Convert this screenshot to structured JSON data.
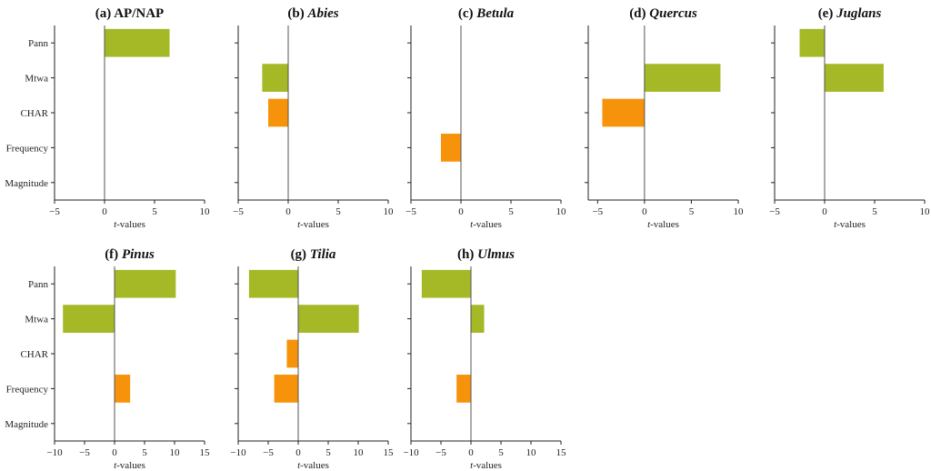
{
  "figure": {
    "categories": [
      "Pann",
      "Mtwa",
      "CHAR",
      "Frequency",
      "Magnitude"
    ],
    "colors": {
      "climate": "#a5b826",
      "fire": "#f7930a",
      "axis": "#222222",
      "zero_line": "#555555"
    },
    "x_axis_label_italic": "t",
    "x_axis_label_rest": "-values"
  },
  "chart_data": [
    {
      "type": "bar",
      "orientation": "horizontal",
      "panel": "(a)",
      "title_prefix": "(a)",
      "title_taxon": "AP/NAP",
      "title_italic": false,
      "categories": [
        "Pann",
        "Mtwa",
        "CHAR",
        "Frequency",
        "Magnitude"
      ],
      "values": [
        6.5,
        null,
        null,
        null,
        null
      ],
      "xlabel": "t-values",
      "xlim": [
        -5,
        10
      ],
      "xticks": [
        -5,
        0,
        5,
        10
      ],
      "xtick_labels": [
        "−5",
        "0",
        "5",
        "10"
      ],
      "show_category_labels": true
    },
    {
      "type": "bar",
      "orientation": "horizontal",
      "panel": "(b)",
      "title_prefix": "(b)",
      "title_taxon": "Abies",
      "title_italic": true,
      "categories": [
        "Pann",
        "Mtwa",
        "CHAR",
        "Frequency",
        "Magnitude"
      ],
      "values": [
        null,
        -2.6,
        -2.0,
        null,
        null
      ],
      "xlabel": "t-values",
      "xlim": [
        -5,
        10
      ],
      "xticks": [
        -5,
        0,
        5,
        10
      ],
      "xtick_labels": [
        "−5",
        "0",
        "5",
        "10"
      ],
      "show_category_labels": false
    },
    {
      "type": "bar",
      "orientation": "horizontal",
      "panel": "(c)",
      "title_prefix": "(c)",
      "title_taxon": "Betula",
      "title_italic": true,
      "categories": [
        "Pann",
        "Mtwa",
        "CHAR",
        "Frequency",
        "Magnitude"
      ],
      "values": [
        null,
        null,
        null,
        -2.0,
        null
      ],
      "xlabel": "t-values",
      "xlim": [
        -5,
        10
      ],
      "xticks": [
        -5,
        0,
        5,
        10
      ],
      "xtick_labels": [
        "−5",
        "0",
        "5",
        "10"
      ],
      "show_category_labels": false
    },
    {
      "type": "bar",
      "orientation": "horizontal",
      "panel": "(d)",
      "title_prefix": "(d)",
      "title_taxon": "Quercus",
      "title_italic": true,
      "categories": [
        "Pann",
        "Mtwa",
        "CHAR",
        "Frequency",
        "Magnitude"
      ],
      "values": [
        null,
        8.1,
        -4.5,
        null,
        null
      ],
      "xlabel": "t-values",
      "xlim": [
        -6,
        10
      ],
      "xticks": [
        -5,
        0,
        5,
        10
      ],
      "xtick_labels": [
        "−5",
        "0",
        "5",
        "10"
      ],
      "show_category_labels": false
    },
    {
      "type": "bar",
      "orientation": "horizontal",
      "panel": "(e)",
      "title_prefix": "(e)",
      "title_taxon": "Juglans",
      "title_italic": true,
      "categories": [
        "Pann",
        "Mtwa",
        "CHAR",
        "Frequency",
        "Magnitude"
      ],
      "values": [
        -2.5,
        5.9,
        null,
        null,
        null
      ],
      "xlabel": "t-values",
      "xlim": [
        -5,
        10
      ],
      "xticks": [
        -5,
        0,
        5,
        10
      ],
      "xtick_labels": [
        "−5",
        "0",
        "5",
        "10"
      ],
      "show_category_labels": false
    },
    {
      "type": "bar",
      "orientation": "horizontal",
      "panel": "(f)",
      "title_prefix": "(f)",
      "title_taxon": "Pinus",
      "title_italic": true,
      "categories": [
        "Pann",
        "Mtwa",
        "CHAR",
        "Frequency",
        "Magnitude"
      ],
      "values": [
        10.2,
        -8.6,
        null,
        2.6,
        null
      ],
      "xlabel": "t-values",
      "xlim": [
        -10,
        15
      ],
      "xticks": [
        -10,
        -5,
        0,
        5,
        10,
        15
      ],
      "xtick_labels": [
        "−10",
        "−5",
        "0",
        "5",
        "10",
        "15"
      ],
      "show_category_labels": true
    },
    {
      "type": "bar",
      "orientation": "horizontal",
      "panel": "(g)",
      "title_prefix": "(g)",
      "title_taxon": "Tilia",
      "title_italic": true,
      "categories": [
        "Pann",
        "Mtwa",
        "CHAR",
        "Frequency",
        "Magnitude"
      ],
      "values": [
        -8.2,
        10.1,
        -1.9,
        -4.0,
        null
      ],
      "xlabel": "t-values",
      "xlim": [
        -10,
        15
      ],
      "xticks": [
        -10,
        -5,
        0,
        5,
        10,
        15
      ],
      "xtick_labels": [
        "−10",
        "−5",
        "0",
        "5",
        "10",
        "15"
      ],
      "show_category_labels": false
    },
    {
      "type": "bar",
      "orientation": "horizontal",
      "panel": "(h)",
      "title_prefix": "(h)",
      "title_taxon": "Ulmus",
      "title_italic": true,
      "categories": [
        "Pann",
        "Mtwa",
        "CHAR",
        "Frequency",
        "Magnitude"
      ],
      "values": [
        -8.2,
        2.2,
        null,
        -2.4,
        null
      ],
      "xlabel": "t-values",
      "xlim": [
        -10,
        15
      ],
      "xticks": [
        -10,
        -5,
        0,
        5,
        10,
        15
      ],
      "xtick_labels": [
        "−10",
        "−5",
        "0",
        "5",
        "10",
        "15"
      ],
      "show_category_labels": false
    }
  ]
}
